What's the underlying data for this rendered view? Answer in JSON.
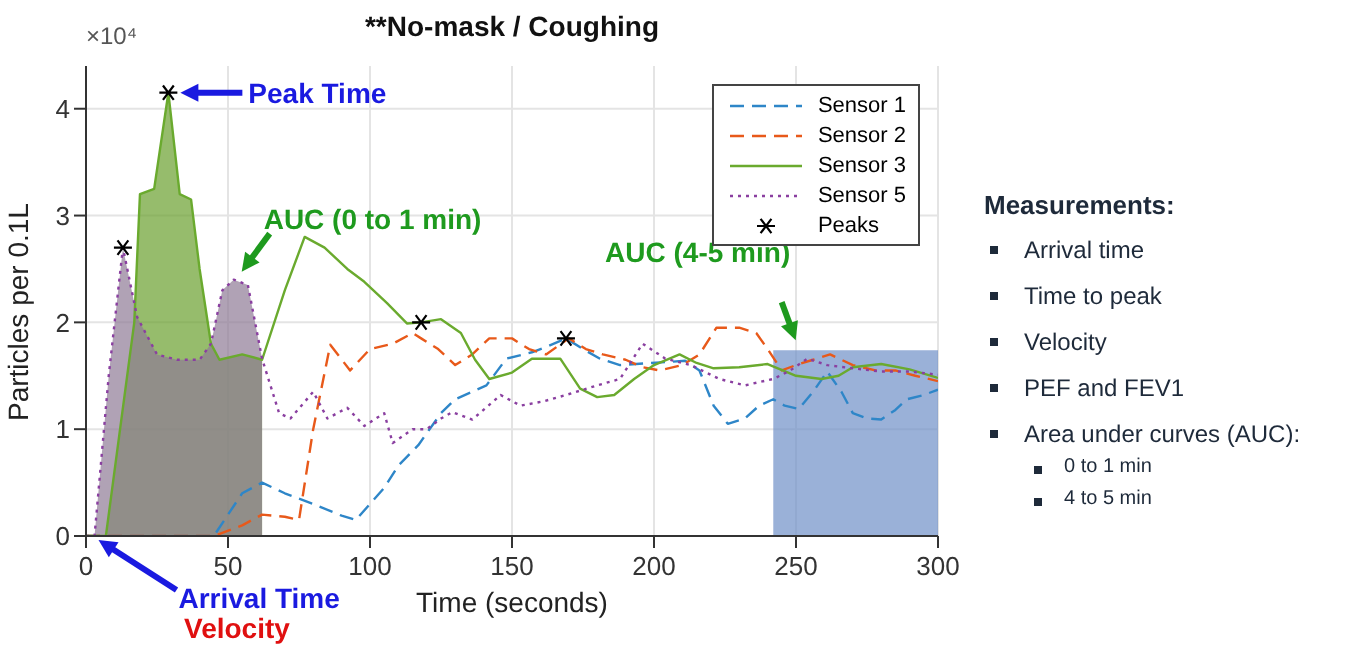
{
  "chart_data": {
    "type": "line",
    "title": "**No-mask / Coughing",
    "xlabel": "Time (seconds)",
    "ylabel": "Particles per 0.1L",
    "xlim": [
      0,
      300
    ],
    "xticks": [
      0,
      50,
      100,
      150,
      200,
      250,
      300
    ],
    "ylim": [
      0,
      4.4
    ],
    "yticks": [
      0,
      1,
      2,
      3,
      4
    ],
    "grid": true,
    "legend": "top right",
    "marker": "none",
    "series": [
      {
        "type": "area",
        "color": "#6f90c8",
        "x": [
          242,
          300
        ],
        "values": [
          1.74,
          1.74
        ]
      },
      {
        "type": "area",
        "color": "#6a9f2e",
        "x": [
          0,
          7,
          12,
          17,
          19,
          24,
          29,
          33,
          37,
          40,
          44,
          47,
          55,
          62
        ],
        "values": [
          0,
          0,
          1,
          2,
          3.2,
          3.25,
          4.15,
          3.2,
          3.15,
          2.5,
          1.8,
          1.65,
          1.7,
          1.65
        ]
      },
      {
        "type": "area",
        "color": "#8f7a96",
        "x": [
          0,
          3,
          8,
          13,
          18,
          25,
          32,
          40,
          44,
          48,
          52,
          57,
          62
        ],
        "values": [
          0,
          0,
          1.5,
          2.7,
          2.05,
          1.7,
          1.65,
          1.65,
          1.8,
          2.3,
          2.4,
          2.35,
          1.66
        ]
      },
      {
        "name": "Sensor 1",
        "color": "#2e86c8",
        "line_style": "dashed",
        "x": [
          0,
          45,
          55,
          62,
          70,
          80,
          90,
          95,
          105,
          110,
          117,
          125,
          130,
          141,
          148,
          157,
          163,
          169,
          175,
          181,
          188,
          199,
          211,
          216,
          221,
          226,
          232,
          237,
          242,
          246,
          251,
          256,
          261,
          266,
          270,
          275,
          280,
          285,
          289,
          295,
          300
        ],
        "values": [
          0,
          0,
          0.4,
          0.5,
          0.4,
          0.3,
          0.19,
          0.15,
          0.45,
          0.66,
          0.85,
          1.15,
          1.28,
          1.41,
          1.66,
          1.72,
          1.78,
          1.85,
          1.75,
          1.66,
          1.6,
          1.62,
          1.64,
          1.55,
          1.22,
          1.05,
          1.1,
          1.22,
          1.28,
          1.22,
          1.19,
          1.35,
          1.54,
          1.35,
          1.15,
          1.1,
          1.09,
          1.18,
          1.28,
          1.32,
          1.37
        ]
      },
      {
        "name": "Sensor 2",
        "color": "#e8591a",
        "line_style": "dashed",
        "x": [
          0,
          45,
          55,
          62,
          70,
          75,
          80,
          86,
          93,
          100,
          108,
          115,
          118,
          124,
          130,
          136,
          142,
          150,
          156,
          162,
          170,
          176,
          182,
          190,
          196,
          202,
          210,
          216,
          222,
          230,
          236,
          240,
          245,
          250,
          256,
          262,
          270,
          278,
          285,
          292,
          300
        ],
        "values": [
          0,
          0,
          0.1,
          0.2,
          0.18,
          0.15,
          1,
          1.79,
          1.55,
          1.75,
          1.8,
          1.9,
          1.85,
          1.75,
          1.6,
          1.7,
          1.85,
          1.85,
          1.75,
          1.7,
          1.85,
          1.75,
          1.7,
          1.65,
          1.58,
          1.55,
          1.6,
          1.7,
          1.95,
          1.95,
          1.9,
          1.75,
          1.55,
          1.6,
          1.65,
          1.7,
          1.6,
          1.55,
          1.55,
          1.5,
          1.45
        ]
      },
      {
        "name": "Sensor 3",
        "color": "#6aaa2e",
        "line_style": "solid",
        "x": [
          0,
          7,
          12,
          17,
          19,
          24,
          29,
          33,
          37,
          40,
          44,
          47,
          55,
          62,
          70,
          77,
          84,
          92,
          98,
          106,
          113,
          118,
          125,
          132,
          137,
          142,
          150,
          157,
          167,
          174,
          180,
          186,
          193,
          200,
          209,
          215,
          221,
          230,
          240,
          250,
          259,
          265,
          270,
          280,
          290,
          300
        ],
        "values": [
          0,
          0,
          1,
          2,
          3.2,
          3.25,
          4.15,
          3.2,
          3.15,
          2.5,
          1.8,
          1.65,
          1.7,
          1.65,
          2.3,
          2.8,
          2.7,
          2.5,
          2.38,
          2.18,
          1.99,
          2,
          2.03,
          1.9,
          1.65,
          1.47,
          1.53,
          1.66,
          1.66,
          1.38,
          1.3,
          1.32,
          1.47,
          1.6,
          1.7,
          1.62,
          1.57,
          1.58,
          1.61,
          1.5,
          1.47,
          1.5,
          1.58,
          1.61,
          1.56,
          1.48
        ]
      },
      {
        "name": "Sensor 5",
        "color": "#8a3fa0",
        "line_style": "dotted",
        "x": [
          0,
          3,
          8,
          13,
          18,
          25,
          32,
          40,
          44,
          48,
          52,
          57,
          62,
          68,
          72,
          80,
          85,
          92,
          98,
          105,
          108,
          115,
          120,
          125,
          129,
          136,
          146,
          153,
          161,
          169,
          180,
          188,
          196,
          204,
          213,
          223,
          232,
          242,
          248,
          254,
          261,
          270,
          280,
          290,
          300
        ],
        "values": [
          0,
          0,
          1.5,
          2.7,
          2.05,
          1.7,
          1.65,
          1.65,
          1.8,
          2.3,
          2.4,
          2.35,
          1.66,
          1.15,
          1.1,
          1.35,
          1.1,
          1.2,
          1.03,
          1.15,
          0.87,
          1,
          1,
          1.1,
          1.16,
          1.09,
          1.32,
          1.22,
          1.26,
          1.32,
          1.41,
          1.47,
          1.8,
          1.66,
          1.6,
          1.47,
          1.41,
          1.47,
          1.55,
          1.66,
          1.6,
          1.57,
          1.54,
          1.54,
          1.51
        ]
      },
      {
        "name": "Peaks",
        "type": "scatter",
        "color": "#000000",
        "marker": "cross",
        "x": [
          13,
          29,
          118,
          169
        ],
        "values": [
          2.7,
          4.15,
          2,
          1.85
        ]
      }
    ],
    "annotations": [
      {
        "text": "Peak Time",
        "x": 29,
        "y": 4.15
      },
      {
        "text": "AUC (0 to 1 min)",
        "x": 52,
        "y": 2.4
      },
      {
        "text": "AUC (4-5 min)",
        "x": 252,
        "y": 1.74
      },
      {
        "text": "Arrival Time",
        "x": 3,
        "y": 0
      },
      "Velocity",
      "×10⁴",
      "Measurements:",
      "Arrival time",
      "Time to peak",
      "Velocity",
      "PEF and FEV1",
      "Area under curves (AUC):",
      "0 to 1 min",
      "4 to 5 min"
    ]
  }
}
